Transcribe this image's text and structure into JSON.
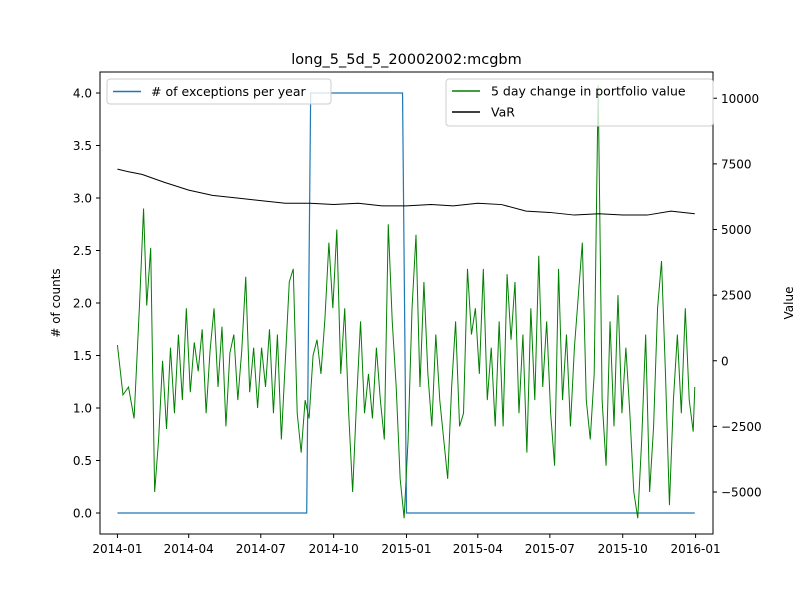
{
  "chart_data": {
    "type": "line",
    "title": "long_5_5d_5_20002002:mcgbm",
    "ylabel_left": "# of counts",
    "ylabel_right": "Value",
    "x_ticks": [
      "2014-01",
      "2014-04",
      "2014-07",
      "2014-10",
      "2015-01",
      "2015-04",
      "2015-07",
      "2015-10",
      "2016-01"
    ],
    "x_range": [
      "2013-12-10",
      "2016-01-23"
    ],
    "y_left": {
      "range": [
        -0.2,
        4.2
      ],
      "ticks": [
        0.0,
        0.5,
        1.0,
        1.5,
        2.0,
        2.5,
        3.0,
        3.5,
        4.0
      ],
      "tick_labels": [
        "0.0",
        "0.5",
        "1.0",
        "1.5",
        "2.0",
        "2.5",
        "3.0",
        "3.5",
        "4.0"
      ]
    },
    "y_right": {
      "range": [
        -6600,
        11000
      ],
      "ticks": [
        -5000,
        -2500,
        0,
        2500,
        5000,
        7500,
        10000
      ],
      "tick_labels": [
        "−5000",
        "−2500",
        "0",
        "2500",
        "5000",
        "7500",
        "10000"
      ]
    },
    "legend_left": {
      "placement": "upper-left",
      "entries": [
        {
          "label": "# of exceptions per year",
          "color": "#1f77b4"
        }
      ]
    },
    "legend_right": {
      "placement": "upper-right",
      "entries": [
        {
          "label": "5 day change in portfolio value",
          "color": "#008000"
        },
        {
          "label": "VaR",
          "color": "#000000"
        }
      ]
    },
    "series": [
      {
        "name": "# of exceptions per year",
        "axis": "left",
        "color": "#1f77b4",
        "points": [
          [
            "2014-01-01",
            0
          ],
          [
            "2014-08-28",
            0
          ],
          [
            "2014-09-02",
            4
          ],
          [
            "2014-12-27",
            4
          ],
          [
            "2015-01-01",
            0
          ],
          [
            "2015-12-31",
            0
          ]
        ]
      },
      {
        "name": "5 day change in portfolio value",
        "axis": "right",
        "color": "#008000",
        "points": [
          [
            "2014-01-01",
            600
          ],
          [
            "2014-01-08",
            -1300
          ],
          [
            "2014-01-15",
            -1000
          ],
          [
            "2014-01-22",
            -2200
          ],
          [
            "2014-01-29",
            2200
          ],
          [
            "2014-02-03",
            5800
          ],
          [
            "2014-02-07",
            2100
          ],
          [
            "2014-02-12",
            4300
          ],
          [
            "2014-02-17",
            -5000
          ],
          [
            "2014-02-22",
            -3000
          ],
          [
            "2014-02-27",
            0
          ],
          [
            "2014-03-04",
            -2600
          ],
          [
            "2014-03-09",
            500
          ],
          [
            "2014-03-14",
            -2000
          ],
          [
            "2014-03-19",
            1000
          ],
          [
            "2014-03-24",
            -1500
          ],
          [
            "2014-03-29",
            2000
          ],
          [
            "2014-04-03",
            -1200
          ],
          [
            "2014-04-08",
            700
          ],
          [
            "2014-04-13",
            -400
          ],
          [
            "2014-04-18",
            1200
          ],
          [
            "2014-04-23",
            -2000
          ],
          [
            "2014-04-28",
            400
          ],
          [
            "2014-05-03",
            2000
          ],
          [
            "2014-05-08",
            -1000
          ],
          [
            "2014-05-13",
            1300
          ],
          [
            "2014-05-18",
            -2500
          ],
          [
            "2014-05-23",
            300
          ],
          [
            "2014-05-28",
            1000
          ],
          [
            "2014-06-02",
            -1500
          ],
          [
            "2014-06-07",
            400
          ],
          [
            "2014-06-12",
            3200
          ],
          [
            "2014-06-17",
            -1200
          ],
          [
            "2014-06-22",
            500
          ],
          [
            "2014-06-27",
            -1800
          ],
          [
            "2014-07-02",
            500
          ],
          [
            "2014-07-07",
            -1000
          ],
          [
            "2014-07-12",
            1200
          ],
          [
            "2014-07-17",
            -2000
          ],
          [
            "2014-07-22",
            1000
          ],
          [
            "2014-07-27",
            -3000
          ],
          [
            "2014-08-01",
            0
          ],
          [
            "2014-08-06",
            3000
          ],
          [
            "2014-08-11",
            3500
          ],
          [
            "2014-08-16",
            -2000
          ],
          [
            "2014-08-21",
            -3500
          ],
          [
            "2014-08-26",
            -1500
          ],
          [
            "2014-08-31",
            -2200
          ],
          [
            "2014-09-05",
            200
          ],
          [
            "2014-09-10",
            800
          ],
          [
            "2014-09-15",
            -500
          ],
          [
            "2014-09-20",
            1600
          ],
          [
            "2014-09-25",
            4500
          ],
          [
            "2014-09-30",
            2000
          ],
          [
            "2014-10-05",
            5000
          ],
          [
            "2014-10-10",
            -500
          ],
          [
            "2014-10-15",
            2000
          ],
          [
            "2014-10-20",
            -2000
          ],
          [
            "2014-10-25",
            -5000
          ],
          [
            "2014-10-30",
            -1500
          ],
          [
            "2014-11-04",
            1500
          ],
          [
            "2014-11-09",
            -2000
          ],
          [
            "2014-11-14",
            -500
          ],
          [
            "2014-11-19",
            -2200
          ],
          [
            "2014-11-24",
            500
          ],
          [
            "2014-11-29",
            -1500
          ],
          [
            "2014-12-04",
            -3000
          ],
          [
            "2014-12-09",
            5200
          ],
          [
            "2014-12-14",
            1500
          ],
          [
            "2014-12-19",
            -1000
          ],
          [
            "2014-12-24",
            -4500
          ],
          [
            "2014-12-29",
            -6000
          ],
          [
            "2015-01-03",
            -3000
          ],
          [
            "2015-01-08",
            2000
          ],
          [
            "2015-01-13",
            4800
          ],
          [
            "2015-01-18",
            -1000
          ],
          [
            "2015-01-23",
            3000
          ],
          [
            "2015-01-28",
            -500
          ],
          [
            "2015-02-02",
            -2500
          ],
          [
            "2015-02-07",
            1000
          ],
          [
            "2015-02-12",
            -1500
          ],
          [
            "2015-02-17",
            -3000
          ],
          [
            "2015-02-22",
            -4500
          ],
          [
            "2015-02-27",
            -1000
          ],
          [
            "2015-03-04",
            1500
          ],
          [
            "2015-03-09",
            -2500
          ],
          [
            "2015-03-14",
            -2000
          ],
          [
            "2015-03-19",
            3500
          ],
          [
            "2015-03-24",
            1000
          ],
          [
            "2015-03-29",
            2000
          ],
          [
            "2015-04-03",
            -500
          ],
          [
            "2015-04-08",
            3500
          ],
          [
            "2015-04-13",
            -1500
          ],
          [
            "2015-04-18",
            500
          ],
          [
            "2015-04-23",
            -2500
          ],
          [
            "2015-04-28",
            1500
          ],
          [
            "2015-05-03",
            -2500
          ],
          [
            "2015-05-08",
            3300
          ],
          [
            "2015-05-13",
            800
          ],
          [
            "2015-05-18",
            3000
          ],
          [
            "2015-05-23",
            -2000
          ],
          [
            "2015-05-28",
            1000
          ],
          [
            "2015-06-02",
            -3500
          ],
          [
            "2015-06-07",
            2000
          ],
          [
            "2015-06-12",
            -1500
          ],
          [
            "2015-06-17",
            4000
          ],
          [
            "2015-06-22",
            -1000
          ],
          [
            "2015-06-27",
            1500
          ],
          [
            "2015-07-02",
            -2000
          ],
          [
            "2015-07-07",
            -4000
          ],
          [
            "2015-07-12",
            3500
          ],
          [
            "2015-07-17",
            -1500
          ],
          [
            "2015-07-22",
            1000
          ],
          [
            "2015-07-27",
            -2500
          ],
          [
            "2015-08-01",
            500
          ],
          [
            "2015-08-06",
            2500
          ],
          [
            "2015-08-11",
            4500
          ],
          [
            "2015-08-16",
            -1500
          ],
          [
            "2015-08-21",
            -3000
          ],
          [
            "2015-08-26",
            -500
          ],
          [
            "2015-08-31",
            10500
          ],
          [
            "2015-09-05",
            -1500
          ],
          [
            "2015-09-10",
            -4000
          ],
          [
            "2015-09-15",
            1500
          ],
          [
            "2015-09-20",
            -2500
          ],
          [
            "2015-09-25",
            2500
          ],
          [
            "2015-09-30",
            -2000
          ],
          [
            "2015-10-05",
            500
          ],
          [
            "2015-10-10",
            -2000
          ],
          [
            "2015-10-15",
            -5000
          ],
          [
            "2015-10-20",
            -6000
          ],
          [
            "2015-10-25",
            -3000
          ],
          [
            "2015-10-30",
            1000
          ],
          [
            "2015-11-04",
            -5000
          ],
          [
            "2015-11-09",
            -2500
          ],
          [
            "2015-11-14",
            2000
          ],
          [
            "2015-11-19",
            3800
          ],
          [
            "2015-11-24",
            -500
          ],
          [
            "2015-11-29",
            -5500
          ],
          [
            "2015-12-04",
            -1500
          ],
          [
            "2015-12-09",
            1000
          ],
          [
            "2015-12-14",
            -2000
          ],
          [
            "2015-12-19",
            2000
          ],
          [
            "2015-12-24",
            -1500
          ],
          [
            "2015-12-29",
            -2700
          ],
          [
            "2015-12-31",
            -1000
          ]
        ]
      },
      {
        "name": "VaR",
        "axis": "right",
        "color": "#000000",
        "points": [
          [
            "2014-01-01",
            7300
          ],
          [
            "2014-01-15",
            7200
          ],
          [
            "2014-02-01",
            7100
          ],
          [
            "2014-03-01",
            6800
          ],
          [
            "2014-04-01",
            6500
          ],
          [
            "2014-05-01",
            6300
          ],
          [
            "2014-06-01",
            6200
          ],
          [
            "2014-07-01",
            6100
          ],
          [
            "2014-08-01",
            6000
          ],
          [
            "2014-09-01",
            6000
          ],
          [
            "2014-10-01",
            5950
          ],
          [
            "2014-11-01",
            6000
          ],
          [
            "2014-12-01",
            5900
          ],
          [
            "2015-01-01",
            5900
          ],
          [
            "2015-02-01",
            5950
          ],
          [
            "2015-03-01",
            5900
          ],
          [
            "2015-04-01",
            6000
          ],
          [
            "2015-05-01",
            5950
          ],
          [
            "2015-06-01",
            5700
          ],
          [
            "2015-07-01",
            5650
          ],
          [
            "2015-08-01",
            5550
          ],
          [
            "2015-09-01",
            5600
          ],
          [
            "2015-10-01",
            5550
          ],
          [
            "2015-11-01",
            5550
          ],
          [
            "2015-12-01",
            5700
          ],
          [
            "2015-12-31",
            5600
          ]
        ]
      }
    ]
  }
}
